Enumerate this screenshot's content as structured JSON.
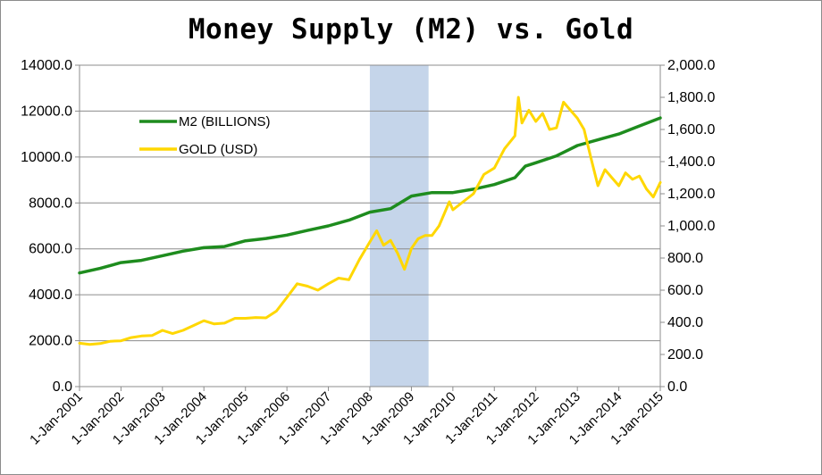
{
  "chart_data": {
    "type": "line",
    "title": "Money Supply (M2) vs. Gold",
    "colors": {
      "m2": "#1e8c1e",
      "gold": "#ffd700",
      "shade": "#c5d5ea",
      "grid": "#8c8c8c"
    },
    "y_left": {
      "lim": [
        0,
        14000
      ],
      "ticks": [
        0,
        2000,
        4000,
        6000,
        8000,
        10000,
        12000,
        14000
      ],
      "tick_labels": [
        "0.0",
        "2000.0",
        "4000.0",
        "6000.0",
        "8000.0",
        "10000.0",
        "12000.0",
        "14000.0"
      ]
    },
    "y_right": {
      "lim": [
        0,
        2000
      ],
      "ticks": [
        0,
        200,
        400,
        600,
        800,
        1000,
        1200,
        1400,
        1600,
        1800,
        2000
      ],
      "tick_labels": [
        "0.0",
        "200.0",
        "400.0",
        "600.0",
        "800.0",
        "1,000.0",
        "1,200.0",
        "1,400.0",
        "1,600.0",
        "1,800.0",
        "2,000.0"
      ]
    },
    "x_axis": {
      "range": [
        "2001-01-01",
        "2015-01-01"
      ],
      "ticks": [
        "2001-01-01",
        "2002-01-01",
        "2003-01-01",
        "2004-01-01",
        "2005-01-01",
        "2006-01-01",
        "2007-01-01",
        "2008-01-01",
        "2009-01-01",
        "2010-01-01",
        "2011-01-01",
        "2012-01-01",
        "2013-01-01",
        "2014-01-01",
        "2015-01-01"
      ],
      "tick_labels": [
        "1-Jan-2001",
        "1-Jan-2002",
        "1-Jan-2003",
        "1-Jan-2004",
        "1-Jan-2005",
        "1-Jan-2006",
        "1-Jan-2007",
        "1-Jan-2008",
        "1-Jan-2009",
        "1-Jan-2010",
        "1-Jan-2011",
        "1-Jan-2012",
        "1-Jan-2013",
        "1-Jan-2014",
        "1-Jan-2015"
      ]
    },
    "shaded_period": [
      "2008-01-01",
      "2009-06-01"
    ],
    "legend_position": "upper-left",
    "series": [
      {
        "name": "M2 (BILLIONS)",
        "axis": "left",
        "points": [
          [
            "2001-01-01",
            4950
          ],
          [
            "2001-07-01",
            5150
          ],
          [
            "2002-01-01",
            5400
          ],
          [
            "2002-07-01",
            5500
          ],
          [
            "2003-01-01",
            5700
          ],
          [
            "2003-07-01",
            5900
          ],
          [
            "2004-01-01",
            6050
          ],
          [
            "2004-07-01",
            6100
          ],
          [
            "2005-01-01",
            6350
          ],
          [
            "2005-07-01",
            6450
          ],
          [
            "2006-01-01",
            6600
          ],
          [
            "2006-07-01",
            6800
          ],
          [
            "2007-01-01",
            7000
          ],
          [
            "2007-07-01",
            7250
          ],
          [
            "2008-01-01",
            7600
          ],
          [
            "2008-07-01",
            7750
          ],
          [
            "2009-01-01",
            8300
          ],
          [
            "2009-07-01",
            8450
          ],
          [
            "2010-01-01",
            8450
          ],
          [
            "2010-07-01",
            8600
          ],
          [
            "2011-01-01",
            8800
          ],
          [
            "2011-07-01",
            9100
          ],
          [
            "2011-10-01",
            9600
          ],
          [
            "2012-01-01",
            9750
          ],
          [
            "2012-07-01",
            10050
          ],
          [
            "2013-01-01",
            10500
          ],
          [
            "2013-07-01",
            10750
          ],
          [
            "2014-01-01",
            11000
          ],
          [
            "2014-07-01",
            11350
          ],
          [
            "2015-01-01",
            11700
          ]
        ]
      },
      {
        "name": "GOLD (USD)",
        "axis": "right",
        "points": [
          [
            "2001-01-01",
            270
          ],
          [
            "2001-04-01",
            262
          ],
          [
            "2001-07-01",
            268
          ],
          [
            "2001-10-01",
            282
          ],
          [
            "2002-01-01",
            285
          ],
          [
            "2002-04-01",
            305
          ],
          [
            "2002-07-01",
            315
          ],
          [
            "2002-10-01",
            318
          ],
          [
            "2003-01-01",
            350
          ],
          [
            "2003-04-01",
            330
          ],
          [
            "2003-07-01",
            350
          ],
          [
            "2003-10-01",
            380
          ],
          [
            "2004-01-01",
            410
          ],
          [
            "2004-04-01",
            390
          ],
          [
            "2004-07-01",
            395
          ],
          [
            "2004-10-01",
            425
          ],
          [
            "2005-01-01",
            425
          ],
          [
            "2005-04-01",
            430
          ],
          [
            "2005-07-01",
            428
          ],
          [
            "2005-10-01",
            470
          ],
          [
            "2006-01-01",
            555
          ],
          [
            "2006-04-01",
            640
          ],
          [
            "2006-07-01",
            625
          ],
          [
            "2006-10-01",
            600
          ],
          [
            "2007-01-01",
            640
          ],
          [
            "2007-04-01",
            675
          ],
          [
            "2007-07-01",
            665
          ],
          [
            "2007-10-01",
            790
          ],
          [
            "2008-01-01",
            900
          ],
          [
            "2008-03-01",
            970
          ],
          [
            "2008-05-01",
            880
          ],
          [
            "2008-07-01",
            910
          ],
          [
            "2008-09-01",
            830
          ],
          [
            "2008-11-01",
            730
          ],
          [
            "2009-01-01",
            860
          ],
          [
            "2009-03-01",
            920
          ],
          [
            "2009-05-01",
            940
          ],
          [
            "2009-07-01",
            940
          ],
          [
            "2009-09-01",
            1000
          ],
          [
            "2009-12-01",
            1150
          ],
          [
            "2010-01-01",
            1100
          ],
          [
            "2010-04-01",
            1150
          ],
          [
            "2010-07-01",
            1200
          ],
          [
            "2010-10-01",
            1320
          ],
          [
            "2011-01-01",
            1360
          ],
          [
            "2011-04-01",
            1480
          ],
          [
            "2011-07-01",
            1560
          ],
          [
            "2011-08-01",
            1800
          ],
          [
            "2011-09-01",
            1640
          ],
          [
            "2011-11-01",
            1720
          ],
          [
            "2012-01-01",
            1650
          ],
          [
            "2012-03-01",
            1700
          ],
          [
            "2012-05-01",
            1600
          ],
          [
            "2012-07-01",
            1610
          ],
          [
            "2012-09-01",
            1770
          ],
          [
            "2012-11-01",
            1720
          ],
          [
            "2013-01-01",
            1670
          ],
          [
            "2013-03-01",
            1600
          ],
          [
            "2013-05-01",
            1420
          ],
          [
            "2013-07-01",
            1250
          ],
          [
            "2013-09-01",
            1350
          ],
          [
            "2013-11-01",
            1300
          ],
          [
            "2014-01-01",
            1250
          ],
          [
            "2014-03-01",
            1330
          ],
          [
            "2014-05-01",
            1290
          ],
          [
            "2014-07-01",
            1310
          ],
          [
            "2014-09-01",
            1230
          ],
          [
            "2014-11-01",
            1180
          ],
          [
            "2015-01-01",
            1270
          ]
        ]
      }
    ]
  }
}
